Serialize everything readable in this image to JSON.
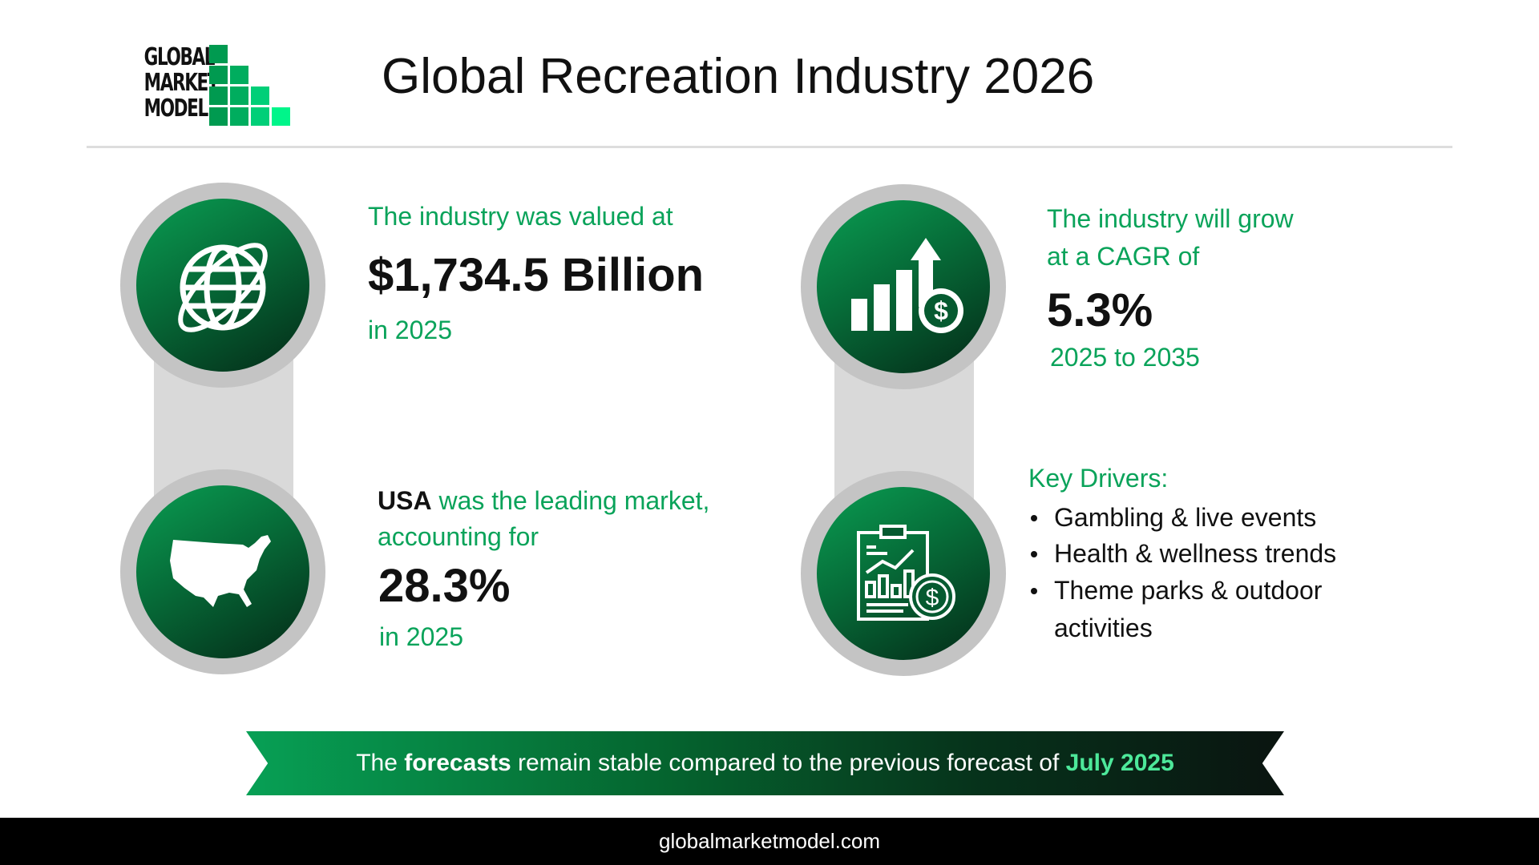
{
  "logo": {
    "lines": [
      "GLOBAL",
      "MARKET",
      "MODEL"
    ],
    "colors": [
      "#009a50",
      "#00ad5e",
      "#00cf78",
      "#00f58a"
    ]
  },
  "header": {
    "title": "Global Recreation Industry 2026"
  },
  "stats": {
    "value": {
      "intro": "The industry was valued at",
      "amount": "$1,734.5 Billion",
      "year": "in 2025",
      "icon": "globe-icon"
    },
    "leading": {
      "country": "USA",
      "intro_rest": " was the leading market,",
      "line2": "accounting for",
      "share": "28.3%",
      "year": "in 2025",
      "icon": "usa-map-icon"
    },
    "growth": {
      "line1": "The industry will grow",
      "line2": "at a CAGR of",
      "cagr": "5.3%",
      "period": "2025 to 2035",
      "icon": "growth-chart-dollar-icon"
    },
    "drivers": {
      "heading": "Key Drivers:",
      "items": [
        "Gambling & live events",
        "Health & wellness trends",
        "Theme parks & outdoor",
        "activities"
      ],
      "icon": "report-dollar-icon"
    }
  },
  "banner": {
    "pre": "The ",
    "bold": "forecasts",
    "mid": " remain stable compared to the previous forecast of ",
    "highlight": "July 2025"
  },
  "footer": {
    "url": "globalmarketmodel.com"
  },
  "colors": {
    "accent": "#0aa35a",
    "highlight": "#4de89a",
    "ring": "#c4c4c4",
    "connector": "#d9d9d9"
  }
}
